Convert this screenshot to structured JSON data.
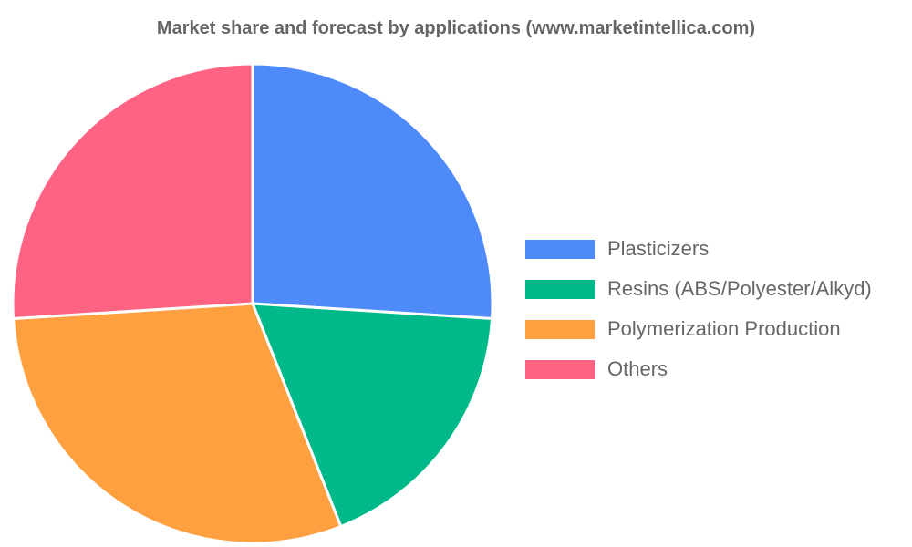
{
  "chart_data": {
    "type": "pie",
    "title": "Market share and forecast by applications (www.marketintellica.com)",
    "categories": [
      "Plasticizers",
      "Resins (ABS/Polyester/Alkyd)",
      "Polymerization Production",
      "Others"
    ],
    "values": [
      26,
      18,
      30,
      26
    ],
    "colors": [
      "#4e8af9",
      "#00b98a",
      "#ffa040",
      "#ff6384"
    ],
    "legend_position": "right"
  }
}
